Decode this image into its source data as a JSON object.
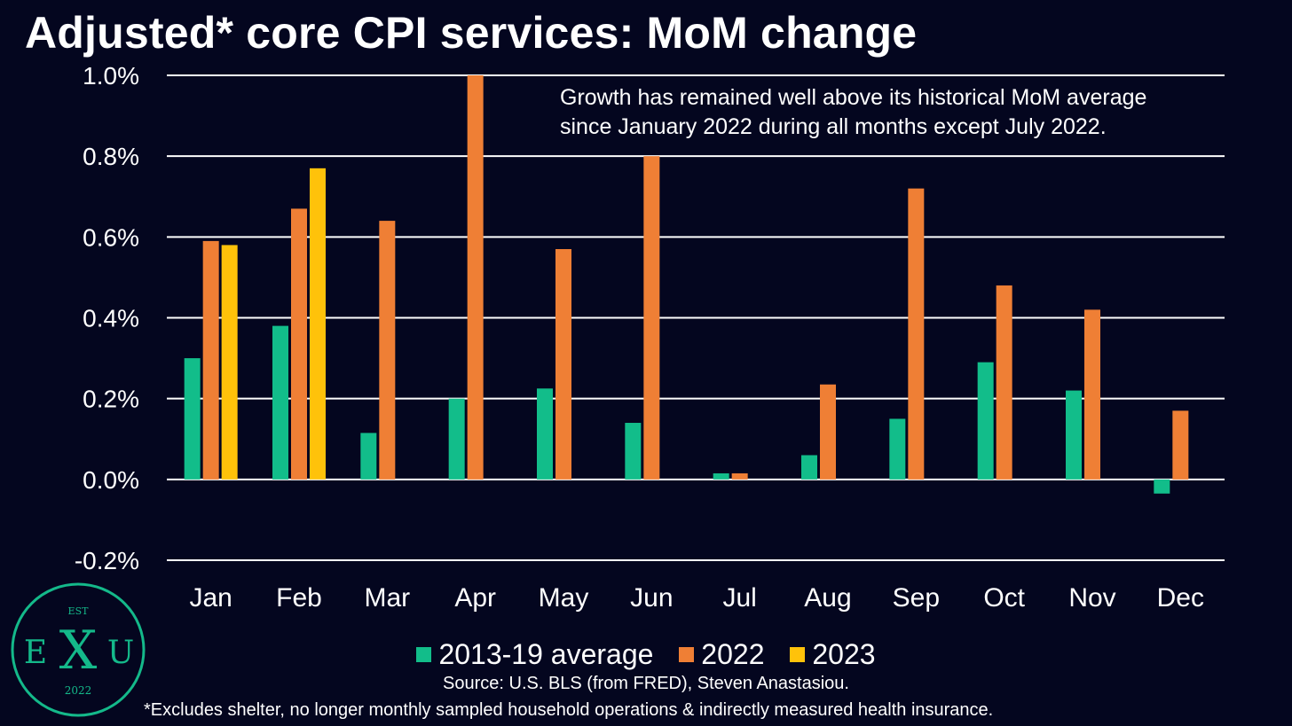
{
  "title": "Adjusted* core CPI services: MoM change",
  "annotation_line1": "Growth has remained well above its historical MoM average",
  "annotation_line2": "since January 2022 during all months except July 2022.",
  "source": "Source: U.S. BLS (from FRED), Steven Anastasiou.",
  "footnote": "*Excludes shelter, no longer monthly sampled household operations & indirectly measured health insurance.",
  "logo": {
    "top_text": "EST",
    "left_letter": "E",
    "center_letter": "X",
    "right_letter": "U",
    "bottom_text": "2022"
  },
  "colors": {
    "background": "#04061f",
    "accent": "#14b98a"
  },
  "chart_data": {
    "type": "bar",
    "title": "Adjusted* core CPI services: MoM change",
    "categories": [
      "Jan",
      "Feb",
      "Mar",
      "Apr",
      "May",
      "Jun",
      "Jul",
      "Aug",
      "Sep",
      "Oct",
      "Nov",
      "Dec"
    ],
    "series": [
      {
        "name": "2013-19 average",
        "color": "#12bd8a",
        "values": [
          0.3,
          0.38,
          0.115,
          0.2,
          0.225,
          0.14,
          0.015,
          0.06,
          0.15,
          0.29,
          0.22,
          -0.035
        ]
      },
      {
        "name": "2022",
        "color": "#ef7f35",
        "values": [
          0.59,
          0.67,
          0.64,
          1.0,
          0.57,
          0.8,
          0.015,
          0.235,
          0.72,
          0.48,
          0.42,
          0.17
        ]
      },
      {
        "name": "2023",
        "color": "#ffc20a",
        "values": [
          0.58,
          0.77,
          null,
          null,
          null,
          null,
          null,
          null,
          null,
          null,
          null,
          null
        ]
      }
    ],
    "yticks": [
      "1.0%",
      "0.8%",
      "0.6%",
      "0.4%",
      "0.2%",
      "0.0%",
      "-0.2%"
    ],
    "ylim": [
      -0.2,
      1.0
    ],
    "grid": true,
    "legend": "bottom"
  }
}
